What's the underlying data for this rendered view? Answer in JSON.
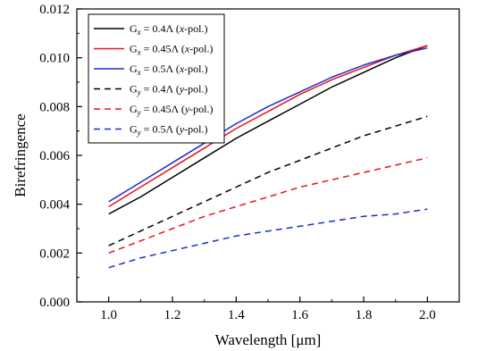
{
  "chart_data": {
    "type": "line",
    "title": "",
    "xlabel": "Wavelength [μm]",
    "ylabel": "Birefringence",
    "xlim": [
      0.9,
      2.1
    ],
    "ylim": [
      0.0,
      0.012
    ],
    "xticks": [
      1.0,
      1.2,
      1.4,
      1.6,
      1.8,
      2.0
    ],
    "yticks": [
      0.0,
      0.002,
      0.004,
      0.006,
      0.008,
      0.01,
      0.012
    ],
    "xtick_labels": [
      "1.0",
      "1.2",
      "1.4",
      "1.6",
      "1.8",
      "2.0"
    ],
    "ytick_labels": [
      "0.000",
      "0.002",
      "0.004",
      "0.006",
      "0.008",
      "0.010",
      "0.012"
    ],
    "grid": false,
    "legend_position": "top-left",
    "series": [
      {
        "legend": {
          "pre": "G",
          "sub": "x",
          "mid": " = 0.4Λ (",
          "it": "x",
          "post": "-pol.)"
        },
        "color": "#000000",
        "dash": "solid",
        "x": [
          1.0,
          1.1,
          1.2,
          1.3,
          1.4,
          1.5,
          1.6,
          1.7,
          1.8,
          1.9,
          2.0
        ],
        "y": [
          0.0036,
          0.0043,
          0.0051,
          0.0059,
          0.0067,
          0.0074,
          0.0081,
          0.0088,
          0.0094,
          0.01,
          0.0105
        ]
      },
      {
        "legend": {
          "pre": "G",
          "sub": "x",
          "mid": " = 0.45Λ (",
          "it": "x",
          "post": "-pol.)"
        },
        "color": "#e8141c",
        "dash": "solid",
        "x": [
          1.0,
          1.1,
          1.2,
          1.3,
          1.4,
          1.5,
          1.6,
          1.7,
          1.8,
          1.9,
          2.0
        ],
        "y": [
          0.0039,
          0.0047,
          0.0055,
          0.0063,
          0.0071,
          0.0078,
          0.0085,
          0.0091,
          0.0096,
          0.0101,
          0.0105
        ]
      },
      {
        "legend": {
          "pre": "G",
          "sub": "x",
          "mid": " = 0.5Λ (",
          "it": "x",
          "post": "-pol.)"
        },
        "color": "#1c2ccc",
        "dash": "solid",
        "x": [
          1.0,
          1.1,
          1.2,
          1.3,
          1.4,
          1.5,
          1.6,
          1.7,
          1.8,
          1.9,
          2.0
        ],
        "y": [
          0.0041,
          0.0049,
          0.0057,
          0.0065,
          0.0073,
          0.008,
          0.0086,
          0.0092,
          0.0097,
          0.0101,
          0.0104
        ]
      },
      {
        "legend": {
          "pre": "G",
          "sub": "y",
          "mid": " = 0.4Λ (",
          "it": "y",
          "post": "-pol.)"
        },
        "color": "#000000",
        "dash": "dashed",
        "x": [
          1.0,
          1.1,
          1.2,
          1.3,
          1.4,
          1.5,
          1.6,
          1.7,
          1.8,
          1.9,
          2.0
        ],
        "y": [
          0.0023,
          0.0029,
          0.0035,
          0.0041,
          0.0047,
          0.0053,
          0.0058,
          0.0063,
          0.0068,
          0.0072,
          0.0076
        ]
      },
      {
        "legend": {
          "pre": "G",
          "sub": "y",
          "mid": " = 0.45Λ (",
          "it": "y",
          "post": "-pol.)"
        },
        "color": "#e8141c",
        "dash": "dashed",
        "x": [
          1.0,
          1.1,
          1.2,
          1.3,
          1.4,
          1.5,
          1.6,
          1.7,
          1.8,
          1.9,
          2.0
        ],
        "y": [
          0.002,
          0.0025,
          0.003,
          0.0035,
          0.0039,
          0.0043,
          0.0047,
          0.005,
          0.0053,
          0.0056,
          0.0059
        ]
      },
      {
        "legend": {
          "pre": "G",
          "sub": "y",
          "mid": " = 0.5Λ (",
          "it": "y",
          "post": "-pol.)"
        },
        "color": "#1c2ccc",
        "dash": "dashed",
        "x": [
          1.0,
          1.1,
          1.2,
          1.3,
          1.4,
          1.5,
          1.6,
          1.7,
          1.8,
          1.9,
          2.0
        ],
        "y": [
          0.0014,
          0.0018,
          0.0021,
          0.0024,
          0.0027,
          0.0029,
          0.0031,
          0.0033,
          0.0035,
          0.0036,
          0.0038
        ]
      }
    ]
  }
}
